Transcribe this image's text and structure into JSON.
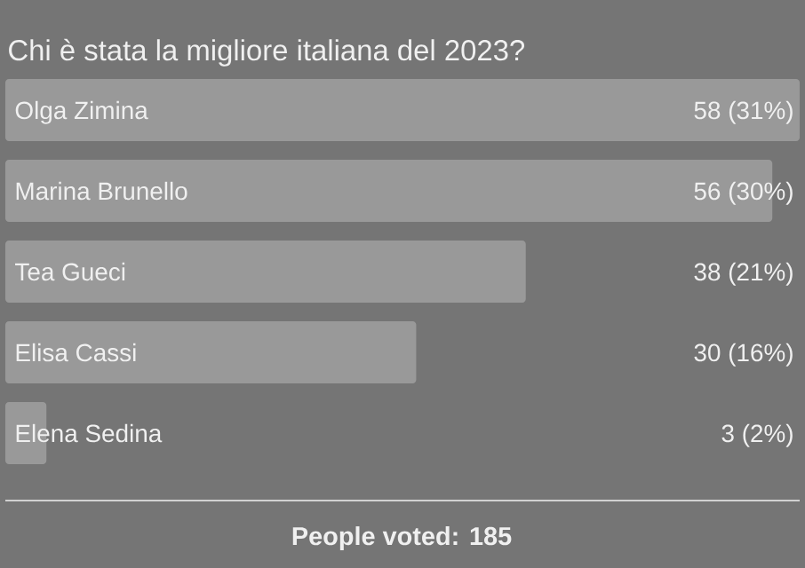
{
  "chart_data": {
    "type": "bar",
    "orientation": "horizontal",
    "title": "Chi è stata la migliore italiana del 2023?",
    "categories": [
      "Olga Zimina",
      "Marina Brunello",
      "Tea Gueci",
      "Elisa Cassi",
      "Elena Sedina"
    ],
    "values": [
      58,
      56,
      38,
      30,
      3
    ],
    "value_labels": [
      "58 (31%)",
      "56 (30%)",
      "38 (21%)",
      "30 (16%)",
      "3 (2%)"
    ],
    "color": "#999999",
    "xlim": [
      0,
      58
    ],
    "tick_labels": false,
    "annotations": [
      "People voted: 185"
    ]
  }
}
